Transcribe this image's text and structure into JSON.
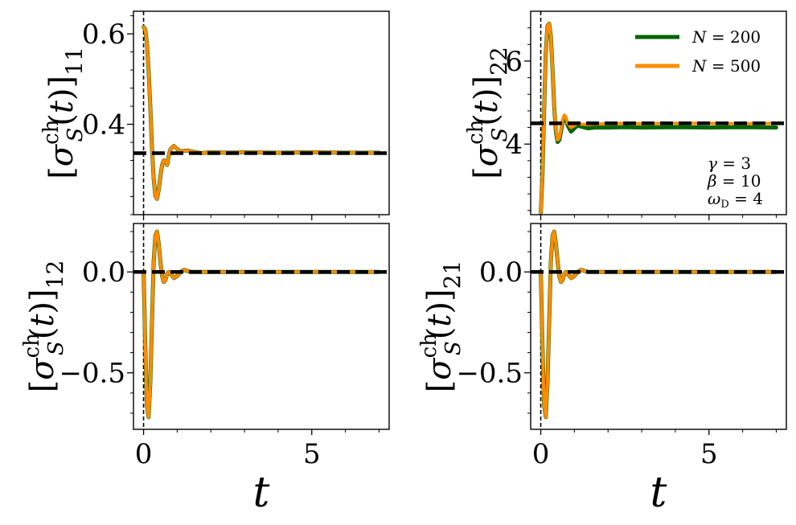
{
  "chart_data": [
    {
      "type": "line",
      "panel": "top-left",
      "ylabel": "[σ_S^ch(t)]_11",
      "xlim": [
        -0.3,
        7.3
      ],
      "ylim": [
        0.2,
        0.65
      ],
      "xticks": [],
      "yticks": [
        0.4,
        0.6
      ],
      "ytick_labels": [
        "0.4",
        "0.6"
      ],
      "steady_state": 0.336,
      "vline_x": 0,
      "series": [
        {
          "name": "N = 200",
          "color": "#006400",
          "x": [
            0,
            0.05,
            0.1,
            0.15,
            0.2,
            0.25,
            0.3,
            0.35,
            0.4,
            0.45,
            0.5,
            0.55,
            0.6,
            0.65,
            0.7,
            0.75,
            0.8,
            0.9,
            1.0,
            1.1,
            1.2,
            1.3,
            1.5,
            1.7,
            2.0,
            2.5,
            3.0,
            4.0,
            5.0,
            6.0,
            7.0
          ],
          "y": [
            0.615,
            0.61,
            0.58,
            0.52,
            0.44,
            0.35,
            0.28,
            0.242,
            0.235,
            0.255,
            0.285,
            0.31,
            0.32,
            0.318,
            0.31,
            0.33,
            0.345,
            0.352,
            0.345,
            0.34,
            0.341,
            0.342,
            0.339,
            0.336,
            0.338,
            0.337,
            0.338,
            0.337,
            0.338,
            0.337,
            0.337
          ]
        },
        {
          "name": "N = 500",
          "color": "#ff8c00",
          "x": [
            0,
            0.05,
            0.1,
            0.15,
            0.2,
            0.25,
            0.3,
            0.35,
            0.4,
            0.45,
            0.5,
            0.55,
            0.6,
            0.65,
            0.7,
            0.75,
            0.8,
            0.9,
            1.0,
            1.1,
            1.2,
            1.3,
            1.5,
            1.7,
            2.0,
            2.5,
            3.0,
            4.0,
            5.0,
            6.0,
            7.0
          ],
          "y": [
            0.615,
            0.61,
            0.58,
            0.52,
            0.44,
            0.35,
            0.28,
            0.242,
            0.235,
            0.255,
            0.285,
            0.31,
            0.32,
            0.318,
            0.31,
            0.33,
            0.345,
            0.352,
            0.345,
            0.34,
            0.341,
            0.342,
            0.339,
            0.336,
            0.338,
            0.337,
            0.338,
            0.337,
            0.338,
            0.337,
            0.337
          ]
        }
      ]
    },
    {
      "type": "line",
      "panel": "top-right",
      "ylabel": "[σ_S^ch(t)]_22",
      "xlim": [
        -0.3,
        7.3
      ],
      "ylim": [
        2.3,
        7.2
      ],
      "xticks": [],
      "yticks": [
        4,
        6
      ],
      "ytick_labels": [
        "4",
        "6"
      ],
      "steady_state": 4.5,
      "vline_x": 0,
      "legend": {
        "position": "top-right",
        "entries": [
          "N = 200",
          "N = 500"
        ]
      },
      "annotations": [
        "γ = 3",
        "β = 10",
        "ω_D = 4"
      ],
      "series": [
        {
          "name": "N = 200",
          "color": "#006400",
          "x": [
            0,
            0.05,
            0.1,
            0.15,
            0.2,
            0.25,
            0.3,
            0.35,
            0.4,
            0.45,
            0.5,
            0.55,
            0.6,
            0.65,
            0.7,
            0.75,
            0.8,
            0.9,
            1.0,
            1.1,
            1.2,
            1.4,
            1.6,
            2.0,
            2.5,
            3.0,
            4.0,
            5.0,
            6.0,
            7.0
          ],
          "y": [
            2.35,
            3.2,
            4.8,
            6.2,
            6.85,
            6.9,
            6.6,
            5.8,
            4.9,
            4.3,
            4.05,
            4.1,
            4.3,
            4.55,
            4.65,
            4.6,
            4.45,
            4.3,
            4.38,
            4.45,
            4.42,
            4.38,
            4.4,
            4.4,
            4.41,
            4.4,
            4.41,
            4.4,
            4.41,
            4.4
          ]
        },
        {
          "name": "N = 500",
          "color": "#ff8c00",
          "x": [
            0,
            0.05,
            0.1,
            0.15,
            0.2,
            0.25,
            0.3,
            0.35,
            0.4,
            0.45,
            0.5,
            0.55,
            0.6,
            0.65,
            0.7,
            0.75,
            0.8,
            0.9,
            1.0,
            1.1,
            1.2,
            1.4,
            1.6,
            2.0,
            2.5,
            3.0,
            4.0,
            5.0,
            6.0,
            7.0
          ],
          "y": [
            2.35,
            3.2,
            4.8,
            6.2,
            6.85,
            6.9,
            6.6,
            5.8,
            4.9,
            4.35,
            4.1,
            4.15,
            4.35,
            4.6,
            4.7,
            4.65,
            4.5,
            4.4,
            4.45,
            4.5,
            4.48,
            4.47,
            4.48,
            4.49,
            4.5,
            4.49,
            4.5,
            4.5,
            4.49,
            4.5
          ]
        }
      ]
    },
    {
      "type": "line",
      "panel": "bottom-left",
      "ylabel": "[σ_S^ch(t)]_12",
      "xlim": [
        -0.3,
        7.3
      ],
      "ylim": [
        -0.78,
        0.24
      ],
      "xticks": [
        0,
        5
      ],
      "xtick_labels": [
        "0",
        "5"
      ],
      "yticks": [
        -0.5,
        0.0
      ],
      "ytick_labels": [
        "−0.5",
        "0.0"
      ],
      "xlabel": "t",
      "steady_state": 0.0,
      "vline_x": 0,
      "series": [
        {
          "name": "N = 200",
          "color": "#006400",
          "x": [
            0,
            0.05,
            0.1,
            0.15,
            0.2,
            0.25,
            0.3,
            0.35,
            0.4,
            0.45,
            0.5,
            0.55,
            0.6,
            0.65,
            0.7,
            0.75,
            0.8,
            0.9,
            1.0,
            1.1,
            1.2,
            1.4,
            1.6,
            2.0,
            2.5,
            3.0,
            4.0,
            5.0,
            6.0,
            7.0
          ],
          "y": [
            0.0,
            -0.35,
            -0.66,
            -0.72,
            -0.55,
            -0.25,
            0.05,
            0.18,
            0.2,
            0.14,
            0.05,
            -0.02,
            -0.05,
            -0.04,
            -0.01,
            0.0,
            -0.01,
            -0.03,
            -0.02,
            0.0,
            0.01,
            0.0,
            0.0,
            0.0,
            0.0,
            0.0,
            0.0,
            0.0,
            0.0,
            0.0
          ]
        },
        {
          "name": "N = 500",
          "color": "#ff8c00",
          "x": [
            0,
            0.05,
            0.1,
            0.15,
            0.2,
            0.25,
            0.3,
            0.35,
            0.4,
            0.45,
            0.5,
            0.55,
            0.6,
            0.65,
            0.7,
            0.75,
            0.8,
            0.9,
            1.0,
            1.1,
            1.2,
            1.4,
            1.6,
            2.0,
            2.5,
            3.0,
            4.0,
            5.0,
            6.0,
            7.0
          ],
          "y": [
            0.0,
            -0.35,
            -0.66,
            -0.72,
            -0.55,
            -0.25,
            0.05,
            0.18,
            0.2,
            0.14,
            0.05,
            -0.02,
            -0.05,
            -0.04,
            -0.01,
            0.0,
            -0.01,
            -0.03,
            -0.02,
            0.0,
            0.01,
            0.0,
            0.0,
            0.0,
            0.0,
            0.0,
            0.0,
            0.0,
            0.0,
            0.0
          ]
        }
      ]
    },
    {
      "type": "line",
      "panel": "bottom-right",
      "ylabel": "[σ_S^ch(t)]_21",
      "xlim": [
        -0.3,
        7.3
      ],
      "ylim": [
        -0.78,
        0.24
      ],
      "xticks": [
        0,
        5
      ],
      "xtick_labels": [
        "0",
        "5"
      ],
      "yticks": [
        -0.5,
        0.0
      ],
      "ytick_labels": [
        "−0.5",
        "0.0"
      ],
      "xlabel": "t",
      "steady_state": 0.0,
      "vline_x": 0,
      "series": [
        {
          "name": "N = 200",
          "color": "#006400",
          "x": [
            0,
            0.05,
            0.1,
            0.15,
            0.2,
            0.25,
            0.3,
            0.35,
            0.4,
            0.45,
            0.5,
            0.55,
            0.6,
            0.65,
            0.7,
            0.75,
            0.8,
            0.9,
            1.0,
            1.1,
            1.2,
            1.4,
            1.6,
            2.0,
            2.5,
            3.0,
            4.0,
            5.0,
            6.0,
            7.0
          ],
          "y": [
            0.0,
            -0.35,
            -0.66,
            -0.72,
            -0.55,
            -0.25,
            0.05,
            0.18,
            0.2,
            0.14,
            0.05,
            -0.02,
            -0.05,
            -0.04,
            -0.01,
            0.0,
            -0.01,
            -0.03,
            -0.02,
            0.0,
            0.01,
            0.0,
            0.0,
            0.0,
            0.0,
            0.0,
            0.0,
            0.0,
            0.0,
            0.0
          ]
        },
        {
          "name": "N = 500",
          "color": "#ff8c00",
          "x": [
            0,
            0.05,
            0.1,
            0.15,
            0.2,
            0.25,
            0.3,
            0.35,
            0.4,
            0.45,
            0.5,
            0.55,
            0.6,
            0.65,
            0.7,
            0.75,
            0.8,
            0.9,
            1.0,
            1.1,
            1.2,
            1.4,
            1.6,
            2.0,
            2.5,
            3.0,
            4.0,
            5.0,
            6.0,
            7.0
          ],
          "y": [
            0.0,
            -0.35,
            -0.66,
            -0.72,
            -0.55,
            -0.25,
            0.05,
            0.18,
            0.2,
            0.14,
            0.05,
            -0.02,
            -0.05,
            -0.04,
            -0.01,
            0.0,
            -0.01,
            -0.03,
            -0.02,
            0.0,
            0.01,
            0.0,
            0.0,
            0.0,
            0.0,
            0.0,
            0.0,
            0.0,
            0.0,
            0.0
          ]
        }
      ]
    }
  ]
}
